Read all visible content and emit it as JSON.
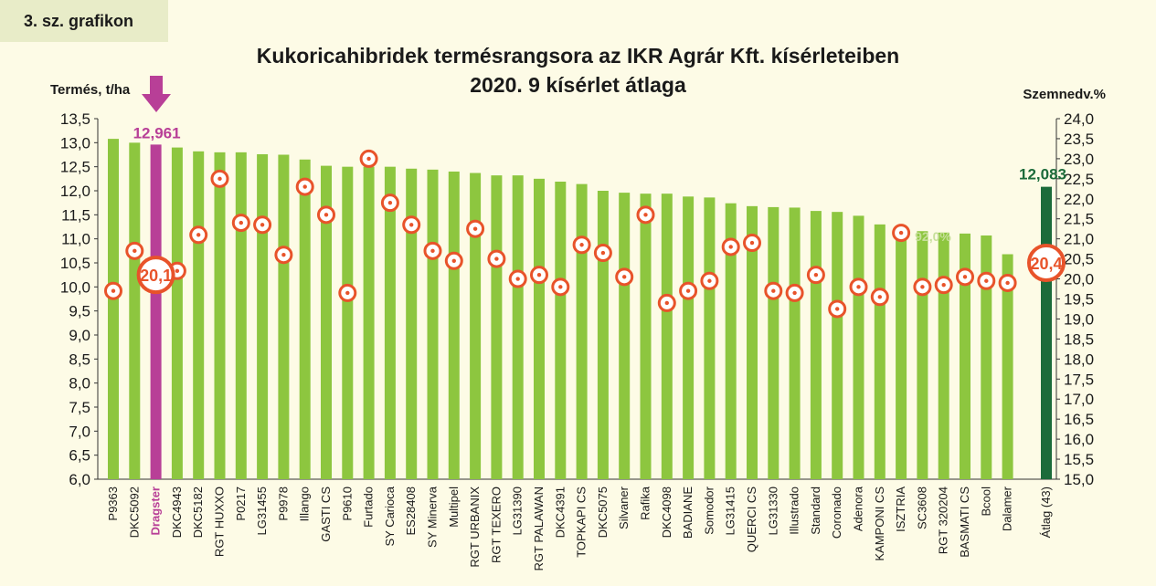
{
  "figure_label": "3. sz. grafikon",
  "chart_data": {
    "type": "bar",
    "title": "Kukoricahibridek termésrangsora az IKR Agrár Kft. kísérleteiben",
    "subtitle": "2020. 9 kísérlet átlaga",
    "ylabel": "Termés, t/ha",
    "y2label": "Szemnedv.%",
    "ylim": [
      6.0,
      13.5
    ],
    "y2lim": [
      15.0,
      24.0
    ],
    "yticks": [
      "6,0",
      "6,5",
      "7,0",
      "7,5",
      "8,0",
      "8,5",
      "9,0",
      "9,5",
      "10,0",
      "10,5",
      "11,0",
      "11,5",
      "12,0",
      "12,5",
      "13,0",
      "13,5"
    ],
    "y2ticks": [
      "15,0",
      "15,5",
      "16,0",
      "16,5",
      "17,0",
      "17,5",
      "18,0",
      "18,5",
      "19,0",
      "19,5",
      "20,0",
      "20,5",
      "21,0",
      "21,5",
      "22,0",
      "22,5",
      "23,0",
      "23,5",
      "24,0"
    ],
    "categories": [
      "P9363",
      "DKC5092",
      "Dragster",
      "DKC4943",
      "DKC5182",
      "RGT HUXXO",
      "P0217",
      "LG31455",
      "P9978",
      "Illango",
      "GASTI CS",
      "P9610",
      "Furtado",
      "SY Carioca",
      "ES28408",
      "SY Minerva",
      "Multipel",
      "RGT URBANIX",
      "RGT TEXERO",
      "LG31390",
      "RGT PALAWAN",
      "DKC4391",
      "TOPKAPI CS",
      "DKC5075",
      "Silvaner",
      "Rafika",
      "DKC4098",
      "BADIANE",
      "Somodor",
      "LG31415",
      "QUERCI CS",
      "LG31330",
      "Illustrado",
      "Standard",
      "Coronado",
      "Adenora",
      "KAMPONI CS",
      "ISZTRIA",
      "SC3608",
      "RGT 320204",
      "BASMATI CS",
      "Bcool",
      "Dalamer",
      "Átlag (43)"
    ],
    "yield": [
      13.08,
      13.0,
      12.961,
      12.9,
      12.82,
      12.8,
      12.8,
      12.76,
      12.75,
      12.65,
      12.52,
      12.5,
      12.5,
      12.5,
      12.46,
      12.44,
      12.4,
      12.37,
      12.32,
      12.32,
      12.25,
      12.19,
      12.14,
      12.0,
      11.96,
      11.94,
      11.94,
      11.88,
      11.86,
      11.74,
      11.68,
      11.66,
      11.65,
      11.58,
      11.56,
      11.48,
      11.3,
      11.2,
      11.16,
      11.13,
      11.11,
      11.07,
      10.68,
      12.083
    ],
    "moisture": [
      19.7,
      20.7,
      20.1,
      20.2,
      21.1,
      22.5,
      21.4,
      21.35,
      20.6,
      22.3,
      21.6,
      19.65,
      23.0,
      21.9,
      21.35,
      20.7,
      20.45,
      21.25,
      20.5,
      20.0,
      20.1,
      19.8,
      20.85,
      20.65,
      20.05,
      21.6,
      19.4,
      19.7,
      19.95,
      20.8,
      20.9,
      19.7,
      19.65,
      20.1,
      19.25,
      19.8,
      19.55,
      21.15,
      19.8,
      19.85,
      20.05,
      19.95,
      19.9,
      20.4
    ],
    "highlight_index": 2,
    "average_index": 43,
    "labels": {
      "highlight_yield": "12,961",
      "average_yield": "12,083",
      "highlight_moisture": "20,1",
      "average_moisture": "20,4",
      "faint_note": "92,0%"
    },
    "colors": {
      "bar": "#8dc63f",
      "highlight_bar": "#b83f97",
      "average_bar": "#1c6b3a",
      "marker": "#e8532a",
      "background": "#fdfbe6"
    }
  }
}
